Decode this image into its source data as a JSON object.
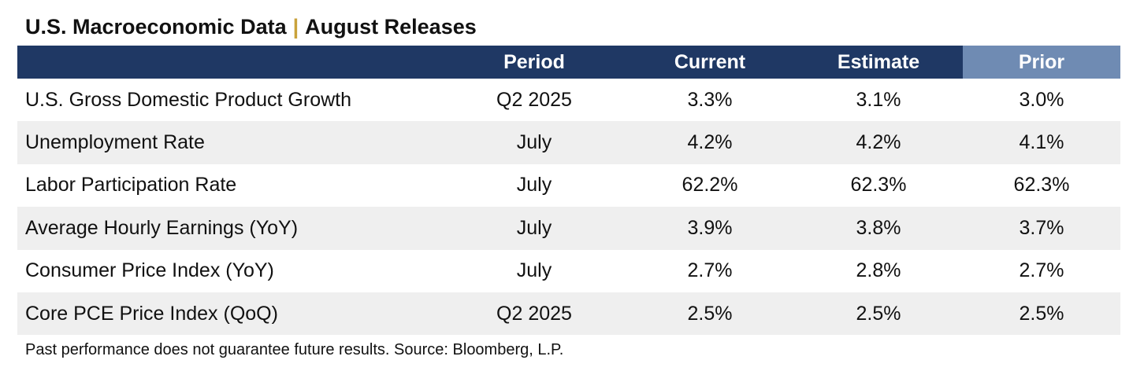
{
  "title": {
    "main": "U.S. Macroeconomic Data",
    "separator": "|",
    "sub": "August Releases"
  },
  "colors": {
    "header_bg": "#1f3864",
    "prior_header_bg": "#6f8bb3",
    "title_separator": "#c9a23b",
    "shaded_row_bg": "#efefef"
  },
  "chart_data": {
    "type": "table",
    "title": "U.S. Macroeconomic Data | August Releases",
    "columns": [
      "",
      "Period",
      "Current",
      "Estimate",
      "Prior"
    ],
    "rows": [
      {
        "indicator": "U.S. Gross Domestic Product Growth",
        "period": "Q2 2025",
        "current": "3.3%",
        "estimate": "3.1%",
        "prior": "3.0%"
      },
      {
        "indicator": "Unemployment Rate",
        "period": "July",
        "current": "4.2%",
        "estimate": "4.2%",
        "prior": "4.1%"
      },
      {
        "indicator": "Labor Participation Rate",
        "period": "July",
        "current": "62.2%",
        "estimate": "62.3%",
        "prior": "62.3%"
      },
      {
        "indicator": "Average Hourly Earnings (YoY)",
        "period": "July",
        "current": "3.9%",
        "estimate": "3.8%",
        "prior": "3.7%"
      },
      {
        "indicator": "Consumer Price Index (YoY)",
        "period": "July",
        "current": "2.7%",
        "estimate": "2.8%",
        "prior": "2.7%"
      },
      {
        "indicator": "Core PCE Price Index (QoQ)",
        "period": "Q2 2025",
        "current": "2.5%",
        "estimate": "2.5%",
        "prior": "2.5%"
      }
    ]
  },
  "footnote": "Past performance does not guarantee future results. Source: Bloomberg, L.P."
}
